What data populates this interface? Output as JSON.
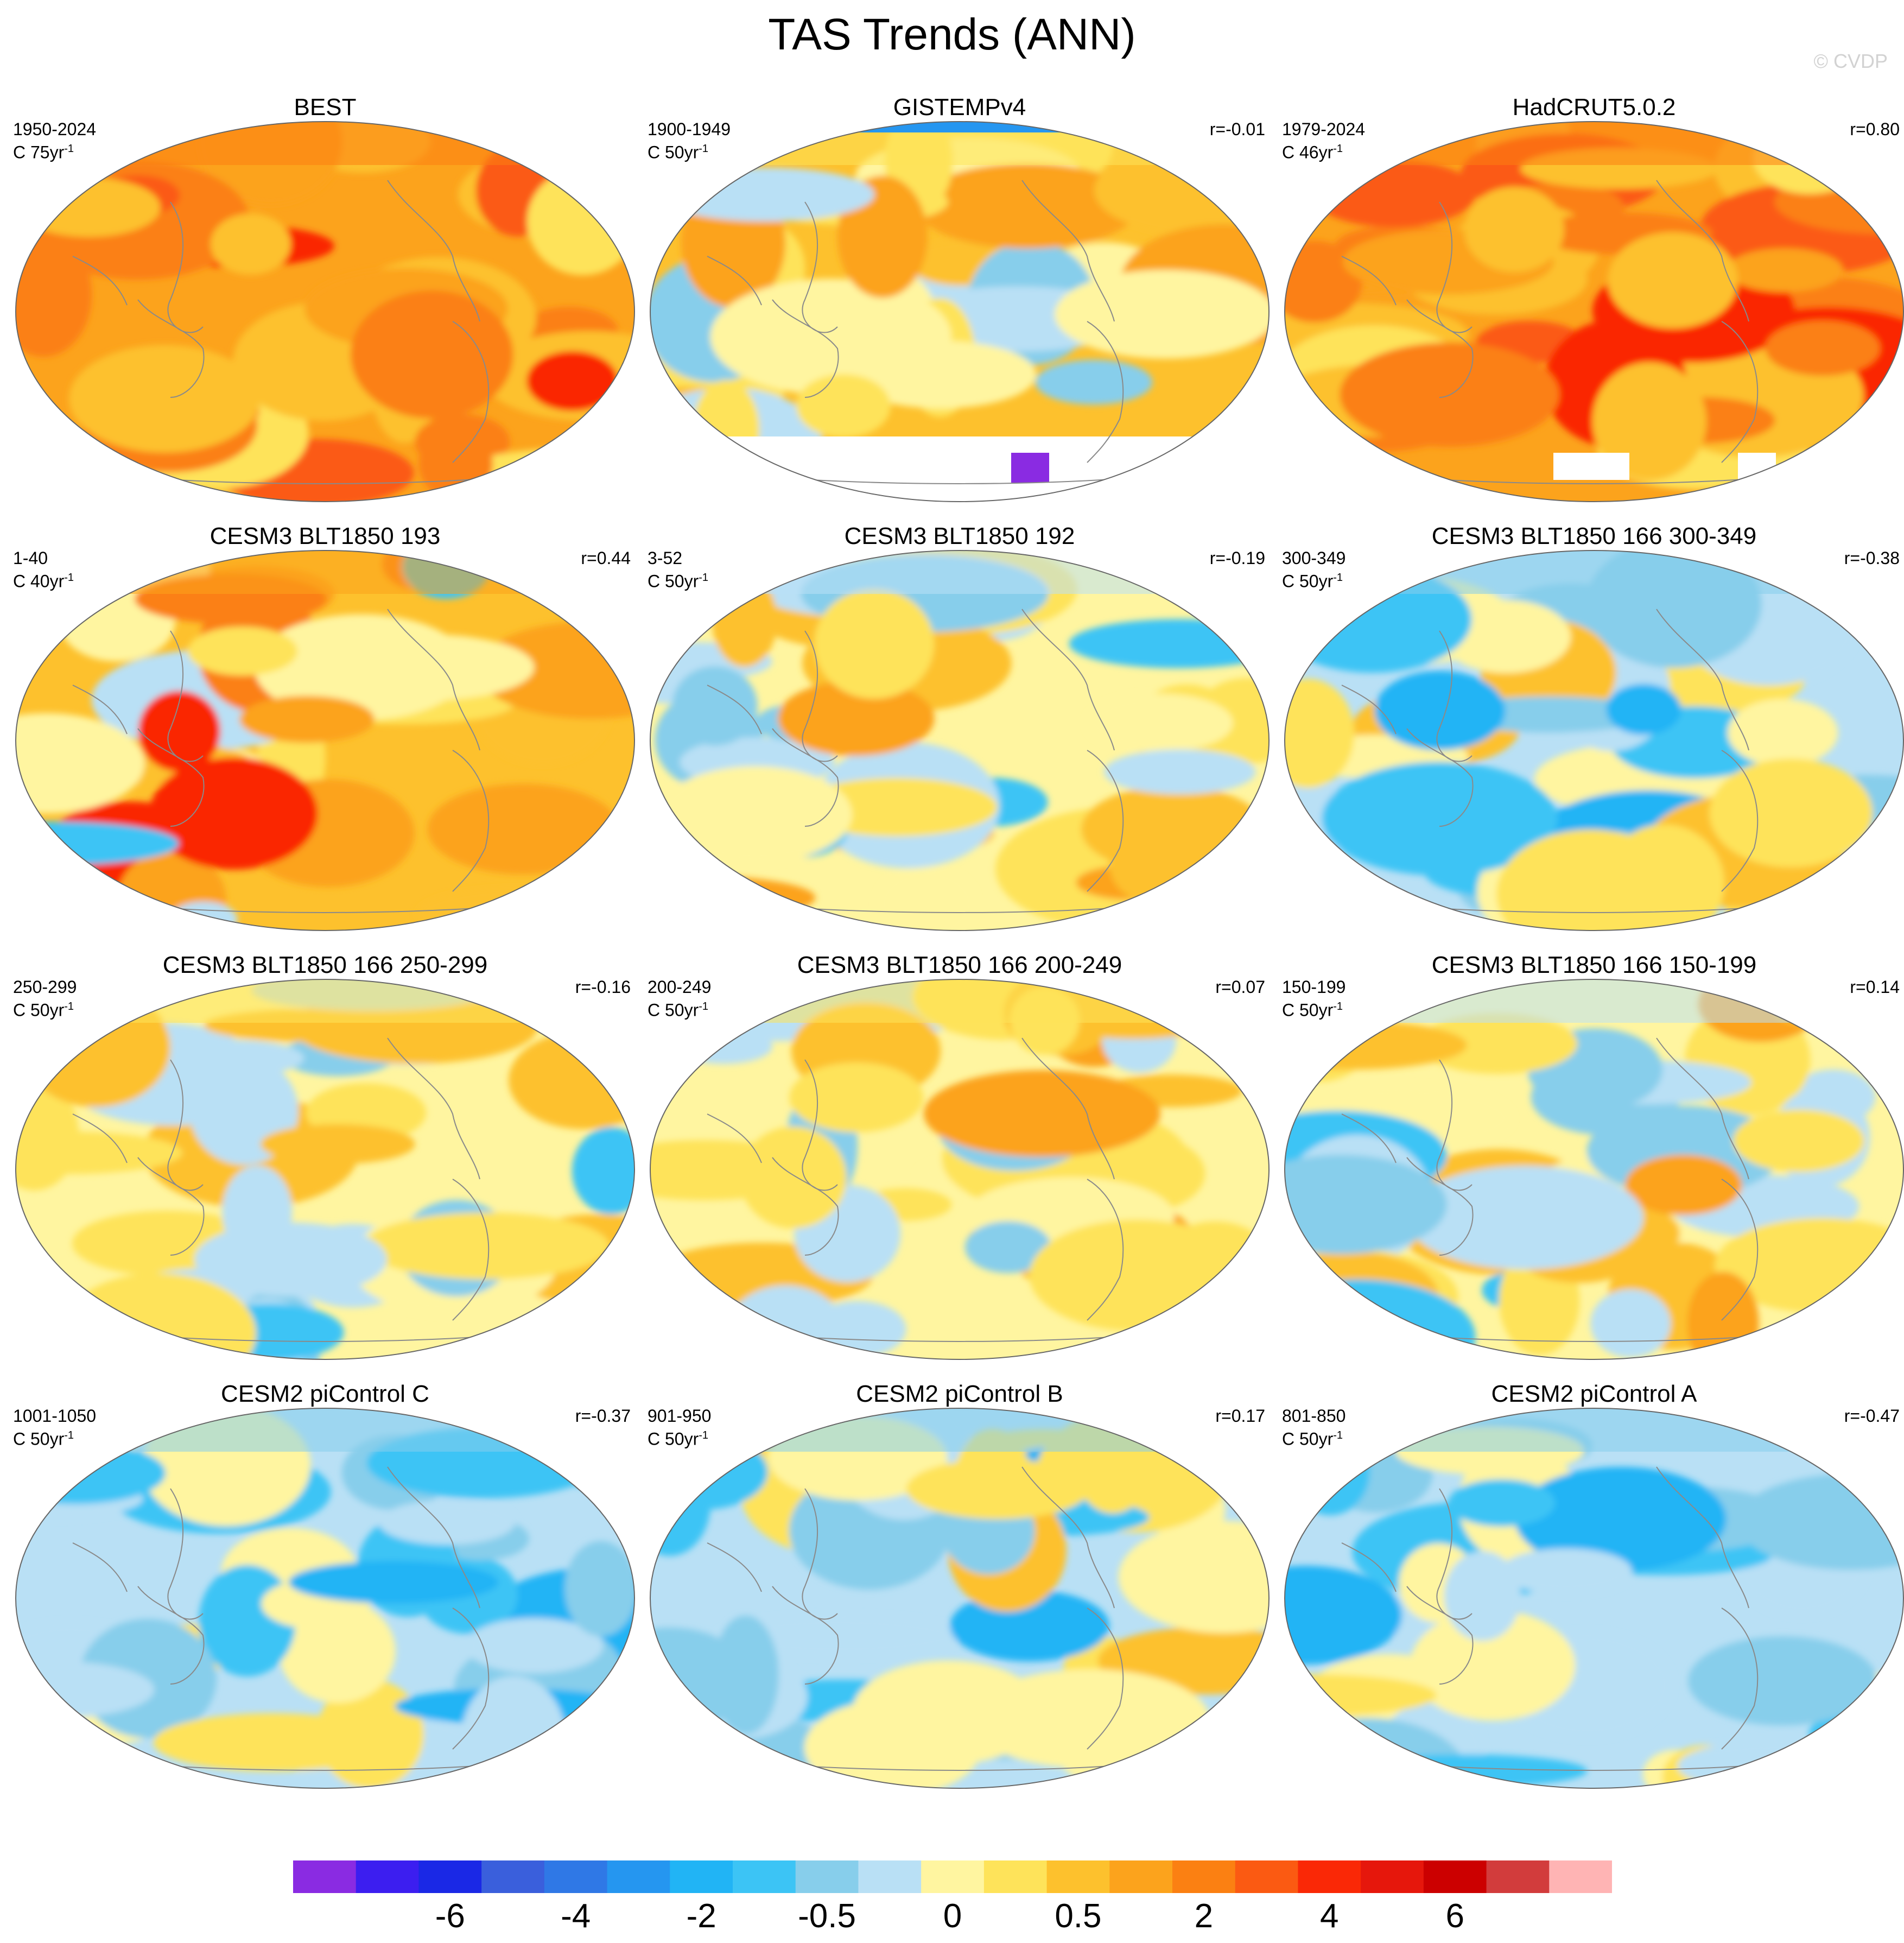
{
  "title": "TAS Trends (ANN)",
  "watermark": "© CVDP",
  "panels": [
    {
      "name": "BEST",
      "period": "1950-2024",
      "unit": "C 75yr",
      "unit_exp": "-1",
      "corr": "",
      "pattern": "strong_warm",
      "missing": "none"
    },
    {
      "name": "GISTEMPv4",
      "period": "1900-1949",
      "unit": "C 50yr",
      "unit_exp": "-1",
      "corr": "r=-0.01",
      "pattern": "mod_warm",
      "missing": "polar"
    },
    {
      "name": "HadCRUT5.0.2",
      "period": "1979-2024",
      "unit": "C 46yr",
      "unit_exp": "-1",
      "corr": "r=0.80",
      "pattern": "strong_warm",
      "missing": "antarctic_partial"
    },
    {
      "name": "CESM3 BLT1850 193",
      "period": "1-40",
      "unit": "C 40yr",
      "unit_exp": "-1",
      "corr": "r=0.44",
      "pattern": "warm_mixed",
      "missing": "none"
    },
    {
      "name": "CESM3 BLT1850 192",
      "period": "3-52",
      "unit": "C 50yr",
      "unit_exp": "-1",
      "corr": "r=-0.19",
      "pattern": "mixed",
      "missing": "none"
    },
    {
      "name": "CESM3 BLT1850 166 300-349",
      "period": "300-349",
      "unit": "C 50yr",
      "unit_exp": "-1",
      "corr": "r=-0.38",
      "pattern": "cool_mixed",
      "missing": "none"
    },
    {
      "name": "CESM3 BLT1850 166 250-299",
      "period": "250-299",
      "unit": "C 50yr",
      "unit_exp": "-1",
      "corr": "r=-0.16",
      "pattern": "neutral",
      "missing": "none"
    },
    {
      "name": "CESM3 BLT1850 166 200-249",
      "period": "200-249",
      "unit": "C 50yr",
      "unit_exp": "-1",
      "corr": "r=0.07",
      "pattern": "neutral_warm",
      "missing": "none"
    },
    {
      "name": "CESM3 BLT1850 166 150-199",
      "period": "150-199",
      "unit": "C 50yr",
      "unit_exp": "-1",
      "corr": "r=0.14",
      "pattern": "mixed",
      "missing": "none"
    },
    {
      "name": "CESM2 piControl C",
      "period": "1001-1050",
      "unit": "C 50yr",
      "unit_exp": "-1",
      "corr": "r=-0.37",
      "pattern": "cool",
      "missing": "none"
    },
    {
      "name": "CESM2 piControl B",
      "period": "901-950",
      "unit": "C 50yr",
      "unit_exp": "-1",
      "corr": "r=0.17",
      "pattern": "cool_mixed",
      "missing": "none"
    },
    {
      "name": "CESM2 piControl A",
      "period": "801-850",
      "unit": "C 50yr",
      "unit_exp": "-1",
      "corr": "r=-0.47",
      "pattern": "cool",
      "missing": "none"
    }
  ],
  "colorbar": {
    "colors": [
      "#8a2be2",
      "#3c1ef0",
      "#1a28e6",
      "#3a5fdc",
      "#2f78e6",
      "#2596f0",
      "#21b4f5",
      "#3cc4f5",
      "#87ceeb",
      "#b9e0f5",
      "#fff5a0",
      "#fee35a",
      "#fdc12d",
      "#fca31c",
      "#fb8012",
      "#fb5a12",
      "#fa2806",
      "#e6170c",
      "#cc0000",
      "#d23c3c",
      "#ffb4b4"
    ],
    "labels": [
      {
        "text": "-6",
        "boundary": 2
      },
      {
        "text": "-4",
        "boundary": 4
      },
      {
        "text": "-2",
        "boundary": 6
      },
      {
        "text": "-0.5",
        "boundary": 8
      },
      {
        "text": "0",
        "boundary": 10
      },
      {
        "text": "0.5",
        "boundary": 12
      },
      {
        "text": "2",
        "boundary": 14
      },
      {
        "text": "4",
        "boundary": 16
      },
      {
        "text": "6",
        "boundary": 18
      }
    ]
  }
}
